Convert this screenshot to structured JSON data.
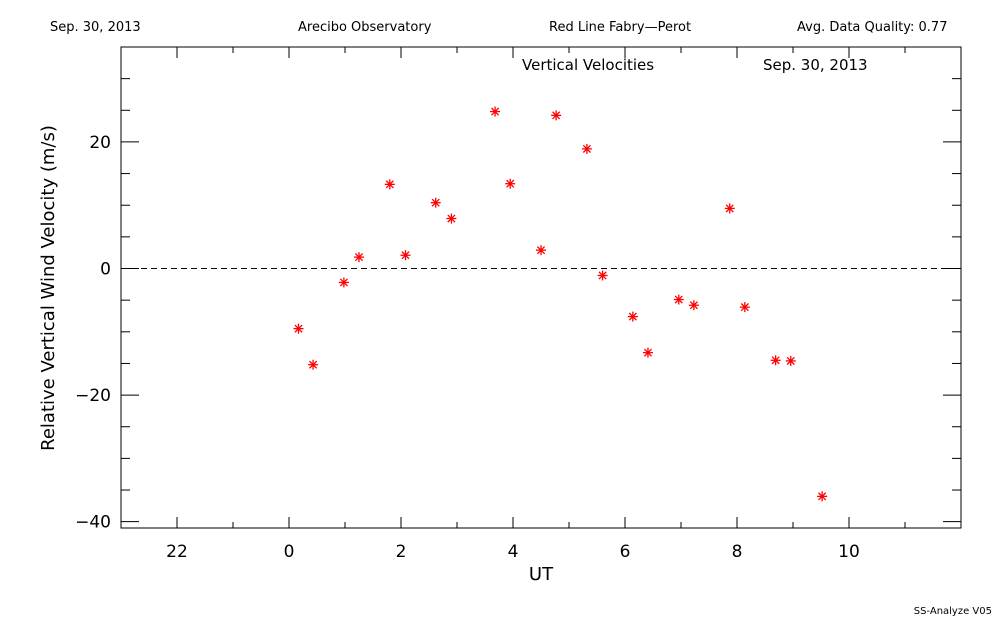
{
  "header": {
    "date": "Sep. 30, 2013",
    "site": "Arecibo Observatory",
    "instrument": "Red Line Fabry—Perot",
    "quality": "Avg. Data Quality: 0.77"
  },
  "footer": {
    "software": "SS-Analyze V05"
  },
  "colors": {
    "marker": "#ff0000",
    "axis": "#000000"
  },
  "chart_data": {
    "type": "scatter",
    "title": "Vertical Velocities",
    "subtitle": "Sep. 30, 2013",
    "xlabel": "UT",
    "ylabel": "Relative Vertical Wind Velocity  (m/s)",
    "xlim": [
      21,
      36
    ],
    "ylim": [
      -41,
      35
    ],
    "x_ticks": [
      22,
      24,
      26,
      28,
      30,
      32,
      34
    ],
    "x_tick_labels": [
      "22",
      "0",
      "2",
      "4",
      "6",
      "8",
      "10"
    ],
    "y_ticks": [
      -40,
      -20,
      0,
      20
    ],
    "y_tick_labels": [
      "−40",
      "−20",
      "0",
      "20"
    ],
    "reference_line": {
      "y": 0,
      "style": "dashed"
    },
    "marker": "asterisk",
    "series": [
      {
        "x": [
          24.17,
          24.43,
          24.98,
          25.25,
          25.8,
          26.08,
          26.62,
          26.9,
          27.68,
          27.95,
          28.5,
          28.77,
          29.32,
          29.6,
          30.14,
          30.41,
          30.96,
          31.23,
          31.87,
          32.14,
          32.69,
          32.96,
          33.52
        ],
        "y": [
          -9.5,
          -15.2,
          -2.2,
          1.8,
          13.3,
          2.1,
          10.4,
          7.9,
          24.8,
          13.4,
          2.9,
          24.2,
          18.9,
          -1.1,
          -7.6,
          -13.3,
          -4.9,
          -5.8,
          9.5,
          -6.1,
          -14.5,
          -14.6,
          -36.0
        ]
      }
    ]
  }
}
